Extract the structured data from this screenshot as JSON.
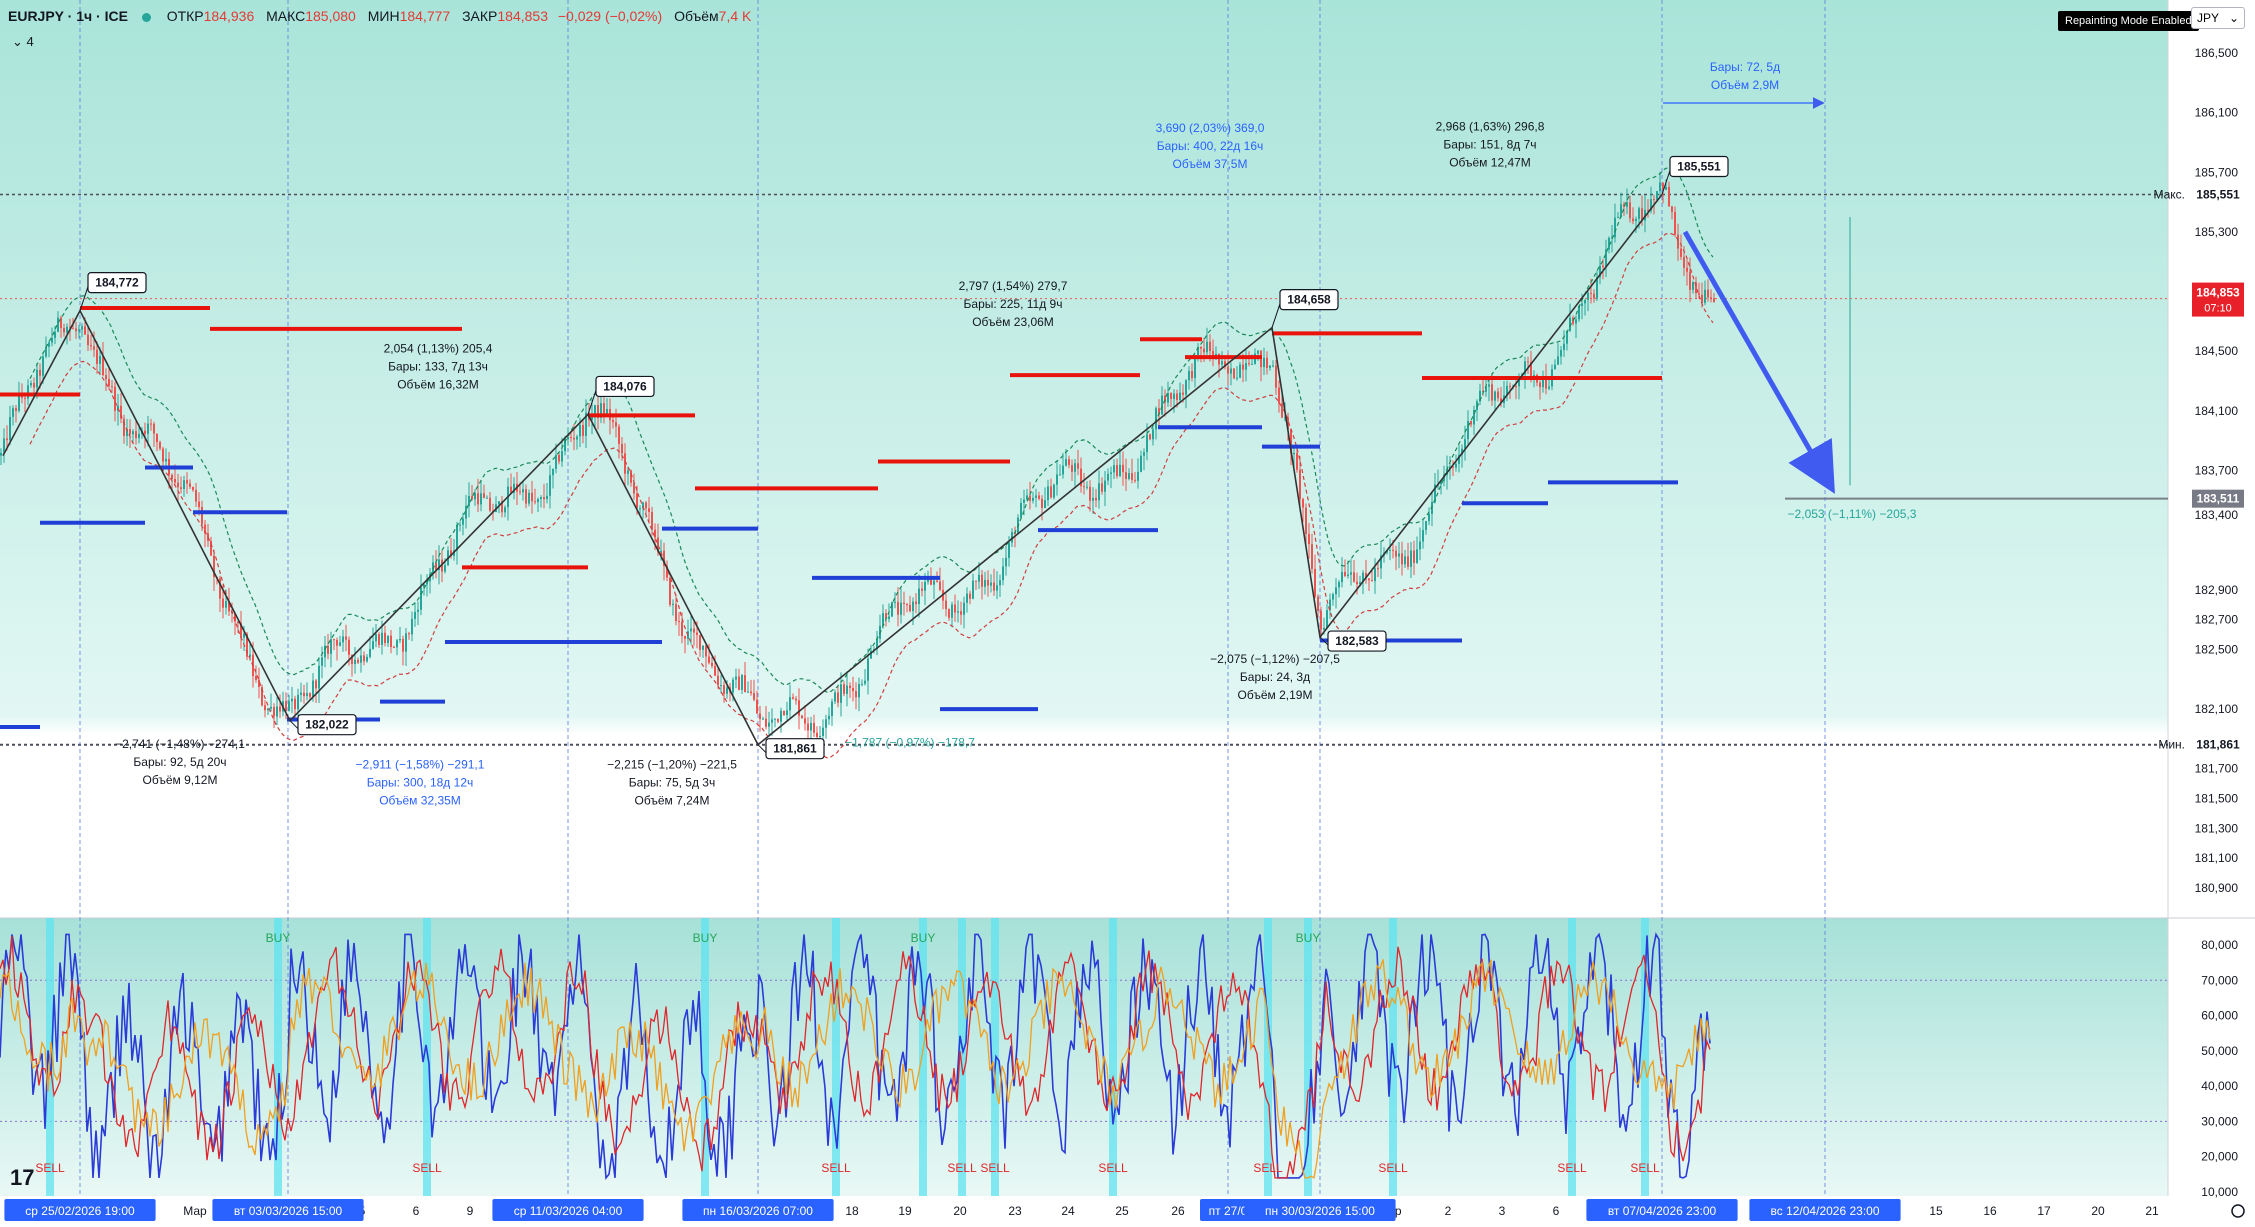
{
  "header": {
    "symbol": "EURJPY · 1ч · ICE",
    "open_label": "ОТКР",
    "open": "184,936",
    "high_label": "МАКС",
    "high": "185,080",
    "low_label": "МИН",
    "low": "184,777",
    "close_label": "ЗАКР",
    "close": "184,853",
    "change": "−0,029 (−0,02%)",
    "volume_label": "Объём",
    "volume": "7,4 K",
    "indicators_count": "4"
  },
  "badge": "Repainting Mode Enabled",
  "currency": "JPY",
  "logo": "17",
  "colors": {
    "bg_top": "#b2e6dc",
    "bg_bottom": "#ffffff",
    "up": "#26a69a",
    "down": "#ef5350",
    "resistance": "#e8140c",
    "support": "#1f3fd6",
    "zigzag": "#333333",
    "arrow": "#3f5bf0",
    "osc_blue": "#2b3bd8",
    "osc_red": "#e0262b",
    "osc_orange": "#f0a020",
    "signal_band": "#5fe3f0"
  },
  "chart_data": [
    {
      "type": "candlestick",
      "y_ticks": [
        "186,500",
        "186,100",
        "185,700",
        "185,300",
        "184,900",
        "184,500",
        "184,100",
        "183,700",
        "183,400",
        "182,900",
        "182,700",
        "182,500",
        "182,100",
        "181,700",
        "181,500",
        "181,300",
        "181,100",
        "180,900"
      ],
      "price_labels": {
        "high": {
          "label": "Макс.",
          "value": "185,551"
        },
        "low": {
          "label": "Мин.",
          "value": "181,861"
        },
        "current": {
          "value": "184,853",
          "timer": "07:10"
        },
        "target": {
          "value": "183,511"
        }
      },
      "zigzag": [
        {
          "t": 3,
          "p": 183.8
        },
        {
          "t": 80,
          "p": 184.772,
          "label": "184,772"
        },
        {
          "t": 290,
          "p": 182.022,
          "label": "182,022"
        },
        {
          "t": 588,
          "p": 184.076,
          "label": "184,076"
        },
        {
          "t": 758,
          "p": 181.861,
          "label": "181,861"
        },
        {
          "t": 1272,
          "p": 184.658,
          "label": "184,658"
        },
        {
          "t": 1320,
          "p": 182.583,
          "label": "182,583"
        },
        {
          "t": 1662,
          "p": 185.551,
          "label": "185,551"
        }
      ],
      "resistance_levels": [
        {
          "p": 184.21,
          "t0": 0,
          "t1": 80
        },
        {
          "p": 184.79,
          "t0": 80,
          "t1": 210
        },
        {
          "p": 184.65,
          "t0": 210,
          "t1": 462
        },
        {
          "p": 183.05,
          "t0": 462,
          "t1": 588
        },
        {
          "p": 184.07,
          "t0": 588,
          "t1": 695
        },
        {
          "p": 183.58,
          "t0": 695,
          "t1": 878
        },
        {
          "p": 183.76,
          "t0": 878,
          "t1": 1010
        },
        {
          "p": 184.34,
          "t0": 1010,
          "t1": 1140
        },
        {
          "p": 184.58,
          "t0": 1140,
          "t1": 1202
        },
        {
          "p": 184.46,
          "t0": 1185,
          "t1": 1262
        },
        {
          "p": 184.62,
          "t0": 1272,
          "t1": 1422
        },
        {
          "p": 184.32,
          "t0": 1422,
          "t1": 1662
        }
      ],
      "support_levels": [
        {
          "p": 181.98,
          "t0": 0,
          "t1": 40
        },
        {
          "p": 183.35,
          "t0": 40,
          "t1": 145
        },
        {
          "p": 183.72,
          "t0": 145,
          "t1": 193
        },
        {
          "p": 183.42,
          "t0": 193,
          "t1": 287
        },
        {
          "p": 182.03,
          "t0": 287,
          "t1": 380
        },
        {
          "p": 182.15,
          "t0": 380,
          "t1": 445
        },
        {
          "p": 182.55,
          "t0": 445,
          "t1": 662
        },
        {
          "p": 183.31,
          "t0": 662,
          "t1": 758
        },
        {
          "p": 182.98,
          "t0": 812,
          "t1": 940
        },
        {
          "p": 182.1,
          "t0": 940,
          "t1": 1038
        },
        {
          "p": 183.3,
          "t0": 1038,
          "t1": 1158
        },
        {
          "p": 183.99,
          "t0": 1158,
          "t1": 1262
        },
        {
          "p": 183.86,
          "t0": 1262,
          "t1": 1320
        },
        {
          "p": 182.56,
          "t0": 1320,
          "t1": 1462
        },
        {
          "p": 183.48,
          "t0": 1462,
          "t1": 1548
        },
        {
          "p": 183.62,
          "t0": 1548,
          "t1": 1678
        }
      ],
      "projection_arrow": {
        "from": {
          "t": 1685,
          "p": 185.3
        },
        "to": {
          "t": 1825,
          "p": 183.66
        }
      },
      "measurements": [
        {
          "lines": [
            "−2,741 (−1,48%) −274,1",
            "Бары: 92, 5д 20ч",
            "Объём 9,12M"
          ],
          "color": "#131722",
          "t": 180,
          "p": 181.84
        },
        {
          "lines": [
            "2,054 (1,13%) 205,4",
            "Бары: 133, 7д 13ч",
            "Объём 16,32M"
          ],
          "color": "#131722",
          "t": 438,
          "p": 184.49
        },
        {
          "lines": [
            "−2,911 (−1,58%) −291,1",
            "Бары: 300, 18д 12ч",
            "Объём 32,35M"
          ],
          "color": "#2962ff",
          "t": 420,
          "p": 181.7
        },
        {
          "lines": [
            "−2,215 (−1,20%) −221,5",
            "Бары: 75, 5д 3ч",
            "Объём 7,24M"
          ],
          "color": "#131722",
          "t": 672,
          "p": 181.7
        },
        {
          "lines": [
            "−1,787 (−0,97%) −178,7"
          ],
          "color": "#26a69a",
          "t": 910,
          "p": 181.85
        },
        {
          "lines": [
            "2,797 (1,54%) 279,7",
            "Бары: 225, 11д 9ч",
            "Объём 23,06M"
          ],
          "color": "#131722",
          "t": 1013,
          "p": 184.91
        },
        {
          "lines": [
            "3,690 (2,03%) 369,0",
            "Бары: 400, 22д 16ч",
            "Объём 37,5M"
          ],
          "color": "#2962ff",
          "t": 1210,
          "p": 185.97
        },
        {
          "lines": [
            "−2,075 (−1,12%) −207,5",
            "Бары: 24, 3д",
            "Объём 2,19M"
          ],
          "color": "#131722",
          "t": 1275,
          "p": 182.41
        },
        {
          "lines": [
            "2,968 (1,63%) 296,8",
            "Бары: 151, 8д 7ч",
            "Объём 12,47M"
          ],
          "color": "#131722",
          "t": 1490,
          "p": 185.98
        },
        {
          "lines": [
            "Бары: 72, 5д",
            "Объём 2,9M"
          ],
          "color": "#2962ff",
          "t": 1745,
          "p": 186.38
        },
        {
          "lines": [
            "−2,053 (−1,11%) −205,3"
          ],
          "color": "#26a69a",
          "t": 1852,
          "p": 183.38
        }
      ]
    },
    {
      "type": "line",
      "y_ticks": [
        "80,000",
        "70,000",
        "60,000",
        "50,000",
        "40,000",
        "30,000",
        "20,000",
        "10,000"
      ],
      "series_colors": [
        "#2b3bd8",
        "#e0262b",
        "#f0a020"
      ],
      "buy_signals": [
        {
          "t": 278,
          "label": "BUY"
        },
        {
          "t": 705,
          "label": "BUY"
        },
        {
          "t": 923,
          "label": "BUY"
        },
        {
          "t": 1308,
          "label": "BUY"
        }
      ],
      "sell_signals": [
        {
          "t": 50,
          "label": "SELL"
        },
        {
          "t": 427,
          "label": "SELL"
        },
        {
          "t": 836,
          "label": "SELL"
        },
        {
          "t": 962,
          "label": "SELL"
        },
        {
          "t": 995,
          "label": "SELL"
        },
        {
          "t": 1113,
          "label": "SELL"
        },
        {
          "t": 1268,
          "label": "SELL"
        },
        {
          "t": 1393,
          "label": "SELL"
        },
        {
          "t": 1572,
          "label": "SELL"
        },
        {
          "t": 1645,
          "label": "SELL"
        }
      ]
    }
  ],
  "time_axis": {
    "ticks": [
      {
        "t": 195,
        "label": "Мар"
      },
      {
        "t": 362,
        "label": "5"
      },
      {
        "t": 416,
        "label": "6"
      },
      {
        "t": 470,
        "label": "9"
      },
      {
        "t": 686,
        "label": "1"
      },
      {
        "t": 852,
        "label": "18"
      },
      {
        "t": 905,
        "label": "19"
      },
      {
        "t": 960,
        "label": "20"
      },
      {
        "t": 1015,
        "label": "23"
      },
      {
        "t": 1068,
        "label": "24"
      },
      {
        "t": 1122,
        "label": "25"
      },
      {
        "t": 1178,
        "label": "26"
      },
      {
        "t": 1395,
        "label": "пр"
      },
      {
        "t": 1448,
        "label": "2"
      },
      {
        "t": 1502,
        "label": "3"
      },
      {
        "t": 1556,
        "label": "6"
      },
      {
        "t": 1936,
        "label": "15"
      },
      {
        "t": 1990,
        "label": "16"
      },
      {
        "t": 2044,
        "label": "17"
      },
      {
        "t": 2098,
        "label": "20"
      },
      {
        "t": 2152,
        "label": "21"
      }
    ],
    "highlights": [
      {
        "t": 80,
        "label": "ср 25/02/2026   19:00"
      },
      {
        "t": 288,
        "label": "вт 03/03/2026   15:00"
      },
      {
        "t": 568,
        "label": "ср 11/03/2026   04:00"
      },
      {
        "t": 758,
        "label": "пн 16/03/2026   07:00"
      },
      {
        "t": 1228,
        "label": "пт 27/0"
      },
      {
        "t": 1320,
        "label": "пн 30/03/2026   15:00"
      },
      {
        "t": 1662,
        "label": "вт 07/04/2026   23:00"
      },
      {
        "t": 1825,
        "label": "вс 12/04/2026   23:00"
      }
    ]
  }
}
